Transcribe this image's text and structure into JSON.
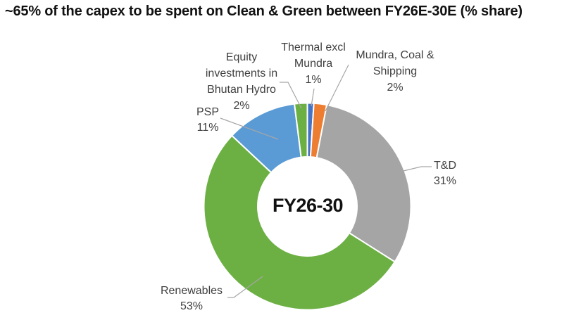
{
  "title": "~65% of the capex to be spent on Clean & Green between FY26E-30E (% share)",
  "chart_data": {
    "type": "pie",
    "subtype": "donut",
    "title": "~65% of the capex to be spent on Clean & Green between FY26E-30E (% share)",
    "center_label": "FY26-30",
    "units": "% share",
    "start_angle_deg": 0,
    "direction": "clockwise",
    "segments": [
      {
        "label": "Thermal excl Mundra",
        "value": 1,
        "color": "#4472C4"
      },
      {
        "label": "Mundra, Coal & Shipping",
        "value": 2,
        "color": "#ED7D31"
      },
      {
        "label": "T&D",
        "value": 31,
        "color": "#A5A5A5"
      },
      {
        "label": "Renewables",
        "value": 53,
        "color": "#6CB043"
      },
      {
        "label": "PSP",
        "value": 11,
        "color": "#5B9BD5"
      },
      {
        "label": "Equity investments in Bhutan Hydro",
        "value": 2,
        "color": "#6CB043"
      }
    ],
    "leader_line_color": "#A6A6A6"
  },
  "callouts": {
    "equity": {
      "line1": "Equity",
      "line2": "investments in",
      "line3": "Bhutan Hydro",
      "pct": "2%"
    },
    "thermal": {
      "line1": "Thermal excl",
      "line2": "Mundra",
      "pct": "1%"
    },
    "mundra": {
      "line1": "Mundra, Coal &",
      "line2": "Shipping",
      "pct": "2%"
    },
    "psp": {
      "line1": "PSP",
      "pct": "11%"
    },
    "td": {
      "line1": "T&D",
      "pct": "31%"
    },
    "renewables": {
      "line1": "Renewables",
      "pct": "53%"
    }
  }
}
